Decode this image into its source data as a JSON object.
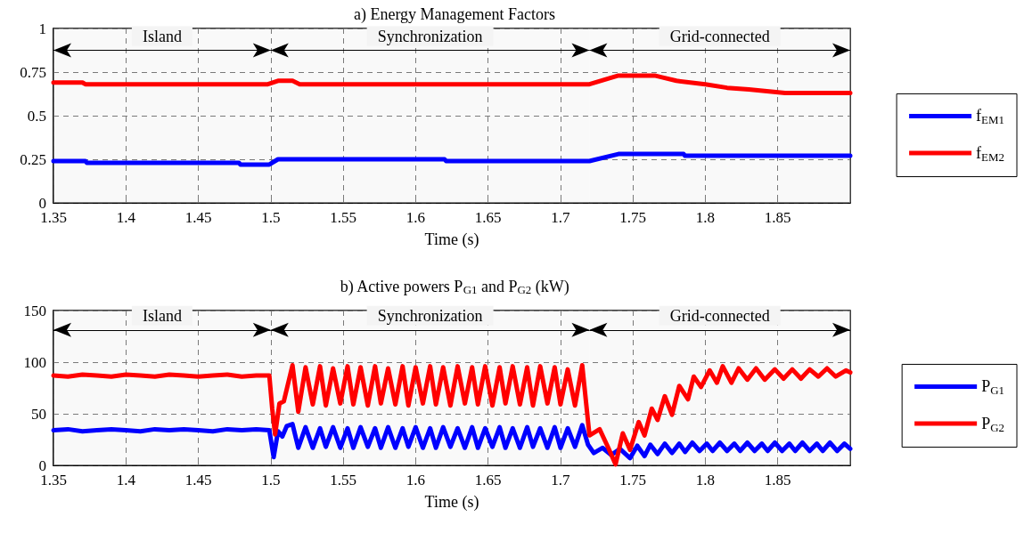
{
  "chart_data": [
    {
      "type": "line",
      "title": "a) Energy Management Factors",
      "xlabel": "Time (s)",
      "xlim": [
        1.35,
        1.9
      ],
      "xticks": [
        1.35,
        1.4,
        1.45,
        1.5,
        1.55,
        1.6,
        1.65,
        1.7,
        1.75,
        1.8,
        1.85
      ],
      "ylim": [
        0,
        1
      ],
      "yticks": [
        0,
        0.25,
        0.5,
        0.75,
        1
      ],
      "grid": true,
      "legend": "right",
      "bands": [
        {
          "axis": "x",
          "from": 1.35,
          "to": 1.5,
          "label": "Island"
        },
        {
          "axis": "x",
          "from": 1.5,
          "to": 1.72,
          "label": "Synchronization"
        },
        {
          "axis": "x",
          "from": 1.72,
          "to": 1.9,
          "label": "Grid-connected"
        }
      ],
      "series": [
        {
          "name": "f$_{EM1}$",
          "color": "#0000ff",
          "x": [
            1.35,
            1.372,
            1.373,
            1.478,
            1.479,
            1.499,
            1.505,
            1.51,
            1.62,
            1.621,
            1.72,
            1.74,
            1.785,
            1.786,
            1.9
          ],
          "values": [
            0.24,
            0.24,
            0.23,
            0.23,
            0.22,
            0.22,
            0.25,
            0.25,
            0.25,
            0.24,
            0.24,
            0.28,
            0.28,
            0.27,
            0.27
          ]
        },
        {
          "name": "f$_{EM2}$",
          "color": "#ff0000",
          "x": [
            1.35,
            1.37,
            1.372,
            1.498,
            1.505,
            1.515,
            1.52,
            1.72,
            1.74,
            1.765,
            1.77,
            1.78,
            1.8,
            1.815,
            1.83,
            1.855,
            1.9
          ],
          "values": [
            0.69,
            0.69,
            0.68,
            0.68,
            0.7,
            0.7,
            0.68,
            0.68,
            0.73,
            0.73,
            0.72,
            0.7,
            0.68,
            0.66,
            0.65,
            0.63,
            0.63
          ]
        }
      ]
    },
    {
      "type": "line",
      "title": "b) Active powers P$_{G1}$ and P$_{G2}$ (kW)",
      "xlabel": "Time (s)",
      "xlim": [
        1.35,
        1.9
      ],
      "xticks": [
        1.35,
        1.4,
        1.45,
        1.5,
        1.55,
        1.6,
        1.65,
        1.7,
        1.75,
        1.8,
        1.85
      ],
      "ylim": [
        0,
        150
      ],
      "yticks": [
        0,
        50,
        100,
        150
      ],
      "grid": true,
      "legend": "right",
      "bands": [
        {
          "axis": "x",
          "from": 1.35,
          "to": 1.5,
          "label": "Island"
        },
        {
          "axis": "x",
          "from": 1.5,
          "to": 1.72,
          "label": "Synchronization"
        },
        {
          "axis": "x",
          "from": 1.72,
          "to": 1.9,
          "label": "Grid-connected"
        }
      ],
      "series": [
        {
          "name": "P$_{G1}$",
          "color": "#0000ff",
          "x": [
            1.35,
            1.36,
            1.37,
            1.38,
            1.39,
            1.4,
            1.41,
            1.42,
            1.43,
            1.44,
            1.45,
            1.46,
            1.47,
            1.48,
            1.49,
            1.499,
            1.502,
            1.505,
            1.508,
            1.511,
            1.515,
            1.519,
            1.524,
            1.529,
            1.534,
            1.538,
            1.543,
            1.548,
            1.553,
            1.557,
            1.562,
            1.567,
            1.572,
            1.576,
            1.581,
            1.586,
            1.591,
            1.595,
            1.6,
            1.605,
            1.61,
            1.614,
            1.619,
            1.624,
            1.629,
            1.634,
            1.639,
            1.643,
            1.648,
            1.653,
            1.658,
            1.662,
            1.667,
            1.672,
            1.677,
            1.681,
            1.686,
            1.691,
            1.696,
            1.7,
            1.705,
            1.71,
            1.715,
            1.719,
            1.723,
            1.729,
            1.735,
            1.741,
            1.748,
            1.753,
            1.758,
            1.762,
            1.767,
            1.772,
            1.777,
            1.782,
            1.786,
            1.791,
            1.796,
            1.801,
            1.805,
            1.81,
            1.815,
            1.82,
            1.824,
            1.829,
            1.834,
            1.839,
            1.843,
            1.848,
            1.853,
            1.858,
            1.862,
            1.867,
            1.872,
            1.877,
            1.881,
            1.886,
            1.891,
            1.896,
            1.9
          ],
          "values": [
            34,
            35,
            33,
            34,
            35,
            34,
            33,
            35,
            34,
            35,
            34,
            33,
            35,
            34,
            35,
            34,
            8,
            33,
            28,
            38,
            40,
            17,
            37,
            17,
            36,
            18,
            37,
            17,
            36,
            17,
            37,
            18,
            36,
            17,
            37,
            17,
            36,
            18,
            37,
            17,
            36,
            17,
            37,
            18,
            36,
            17,
            37,
            17,
            36,
            18,
            37,
            17,
            36,
            17,
            37,
            18,
            36,
            17,
            37,
            17,
            36,
            18,
            39,
            20,
            12,
            17,
            10,
            16,
            7,
            19,
            9,
            20,
            11,
            21,
            12,
            21,
            13,
            22,
            14,
            21,
            14,
            22,
            14,
            21,
            14,
            22,
            14,
            21,
            14,
            22,
            14,
            21,
            14,
            22,
            14,
            21,
            14,
            22,
            14,
            21,
            16
          ]
        },
        {
          "name": "P$_{G2}$",
          "color": "#ff0000",
          "x": [
            1.35,
            1.36,
            1.37,
            1.38,
            1.39,
            1.4,
            1.41,
            1.42,
            1.43,
            1.44,
            1.45,
            1.46,
            1.47,
            1.48,
            1.49,
            1.499,
            1.501,
            1.503,
            1.506,
            1.509,
            1.515,
            1.519,
            1.524,
            1.529,
            1.534,
            1.538,
            1.543,
            1.548,
            1.553,
            1.557,
            1.562,
            1.567,
            1.572,
            1.576,
            1.581,
            1.586,
            1.591,
            1.595,
            1.6,
            1.605,
            1.61,
            1.614,
            1.619,
            1.624,
            1.629,
            1.634,
            1.639,
            1.643,
            1.648,
            1.653,
            1.658,
            1.662,
            1.667,
            1.672,
            1.677,
            1.681,
            1.686,
            1.691,
            1.696,
            1.7,
            1.705,
            1.71,
            1.715,
            1.72,
            1.727,
            1.733,
            1.738,
            1.743,
            1.748,
            1.754,
            1.758,
            1.763,
            1.767,
            1.772,
            1.777,
            1.782,
            1.788,
            1.792,
            1.797,
            1.803,
            1.808,
            1.812,
            1.818,
            1.823,
            1.829,
            1.835,
            1.841,
            1.848,
            1.854,
            1.86,
            1.866,
            1.872,
            1.878,
            1.884,
            1.89,
            1.897,
            1.9
          ],
          "values": [
            87,
            86,
            88,
            87,
            86,
            88,
            87,
            86,
            88,
            87,
            86,
            87,
            88,
            86,
            87,
            87,
            55,
            30,
            60,
            62,
            97,
            52,
            95,
            59,
            96,
            58,
            94,
            60,
            96,
            59,
            95,
            58,
            96,
            60,
            94,
            59,
            96,
            58,
            95,
            60,
            96,
            59,
            95,
            58,
            96,
            60,
            95,
            59,
            96,
            58,
            95,
            60,
            96,
            59,
            95,
            58,
            96,
            60,
            95,
            59,
            93,
            58,
            97,
            29,
            35,
            17,
            1,
            31,
            15,
            42,
            29,
            55,
            44,
            67,
            49,
            77,
            64,
            86,
            76,
            92,
            80,
            96,
            80,
            94,
            83,
            94,
            83,
            93,
            84,
            93,
            84,
            93,
            86,
            94,
            86,
            92,
            90
          ]
        }
      ]
    }
  ]
}
